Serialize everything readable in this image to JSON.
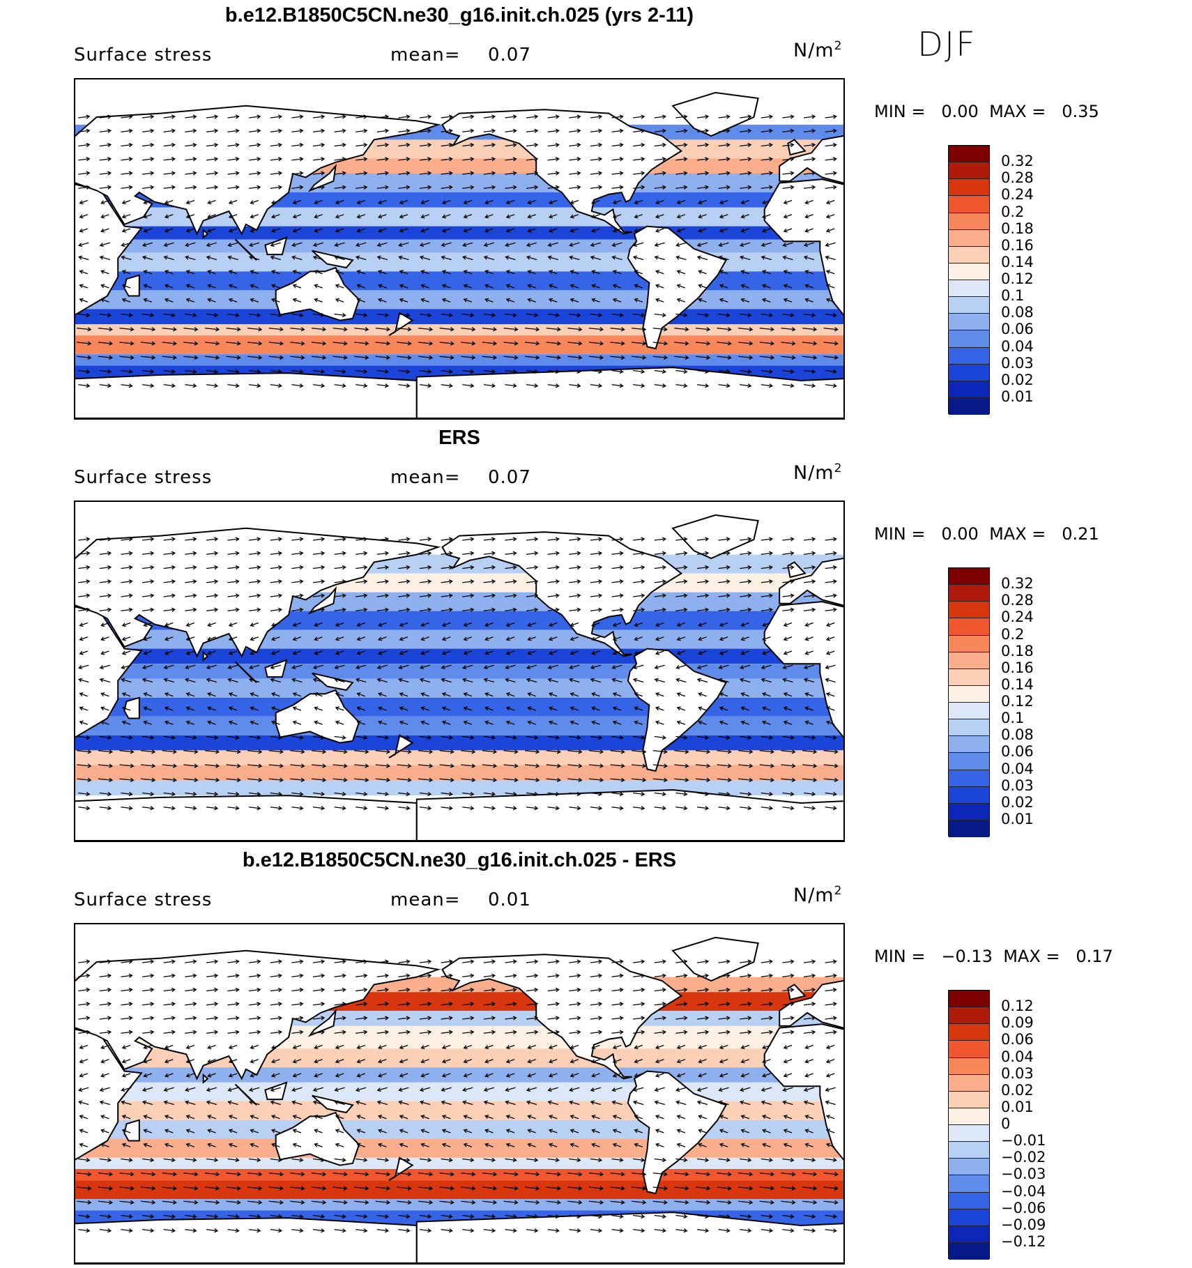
{
  "season": "DJF",
  "panels": [
    {
      "title": "b.e12.B1850C5CN.ne30_g16.init.ch.025 (yrs 2-11)",
      "variable": "Surface stress",
      "mean_label": "mean=",
      "mean_value": "0.07",
      "units_base": "N/m",
      "units_exp": "2",
      "min_label": "MIN =",
      "min_value": "0.00",
      "max_label": "MAX =",
      "max_value": "0.35",
      "colorbar": {
        "labels": [
          "0.32",
          "0.28",
          "0.24",
          "0.2",
          "0.18",
          "0.16",
          "0.14",
          "0.12",
          "0.1",
          "0.08",
          "0.06",
          "0.04",
          "0.03",
          "0.02",
          "0.01"
        ],
        "colors": [
          "#7f0000",
          "#b01a0b",
          "#d8360f",
          "#f0572e",
          "#f9875c",
          "#fbae8b",
          "#fcd0b6",
          "#fdf0e4",
          "#dce8f8",
          "#b8d0f4",
          "#8fb0ef",
          "#5f8cea",
          "#3565e6",
          "#1b44d8",
          "#0c27b8",
          "#061a8a"
        ]
      }
    },
    {
      "title": "ERS",
      "variable": "Surface stress",
      "mean_label": "mean=",
      "mean_value": "0.07",
      "units_base": "N/m",
      "units_exp": "2",
      "min_label": "MIN =",
      "min_value": "0.00",
      "max_label": "MAX =",
      "max_value": "0.21",
      "colorbar": {
        "labels": [
          "0.32",
          "0.28",
          "0.24",
          "0.2",
          "0.18",
          "0.16",
          "0.14",
          "0.12",
          "0.1",
          "0.08",
          "0.06",
          "0.04",
          "0.03",
          "0.02",
          "0.01"
        ],
        "colors": [
          "#7f0000",
          "#b01a0b",
          "#d8360f",
          "#f0572e",
          "#f9875c",
          "#fbae8b",
          "#fcd0b6",
          "#fdf0e4",
          "#dce8f8",
          "#b8d0f4",
          "#8fb0ef",
          "#5f8cea",
          "#3565e6",
          "#1b44d8",
          "#0c27b8",
          "#061a8a"
        ]
      }
    },
    {
      "title": "b.e12.B1850C5CN.ne30_g16.init.ch.025 - ERS",
      "variable": "Surface stress",
      "mean_label": "mean=",
      "mean_value": "0.01",
      "units_base": "N/m",
      "units_exp": "2",
      "min_label": "MIN =",
      "min_value": "−0.13",
      "max_label": "MAX =",
      "max_value": "0.17",
      "colorbar": {
        "labels": [
          "0.12",
          "0.09",
          "0.06",
          "0.04",
          "0.03",
          "0.02",
          "0.01",
          "0",
          "−0.01",
          "−0.02",
          "−0.03",
          "−0.04",
          "−0.06",
          "−0.09",
          "−0.12"
        ],
        "colors": [
          "#7f0000",
          "#b01a0b",
          "#d8360f",
          "#f0572e",
          "#f9875c",
          "#fbae8b",
          "#fcd0b6",
          "#fdf0e4",
          "#dce8f8",
          "#b8d0f4",
          "#8fb0ef",
          "#5f8cea",
          "#3565e6",
          "#1b44d8",
          "#0c27b8",
          "#061a8a"
        ]
      }
    }
  ]
}
